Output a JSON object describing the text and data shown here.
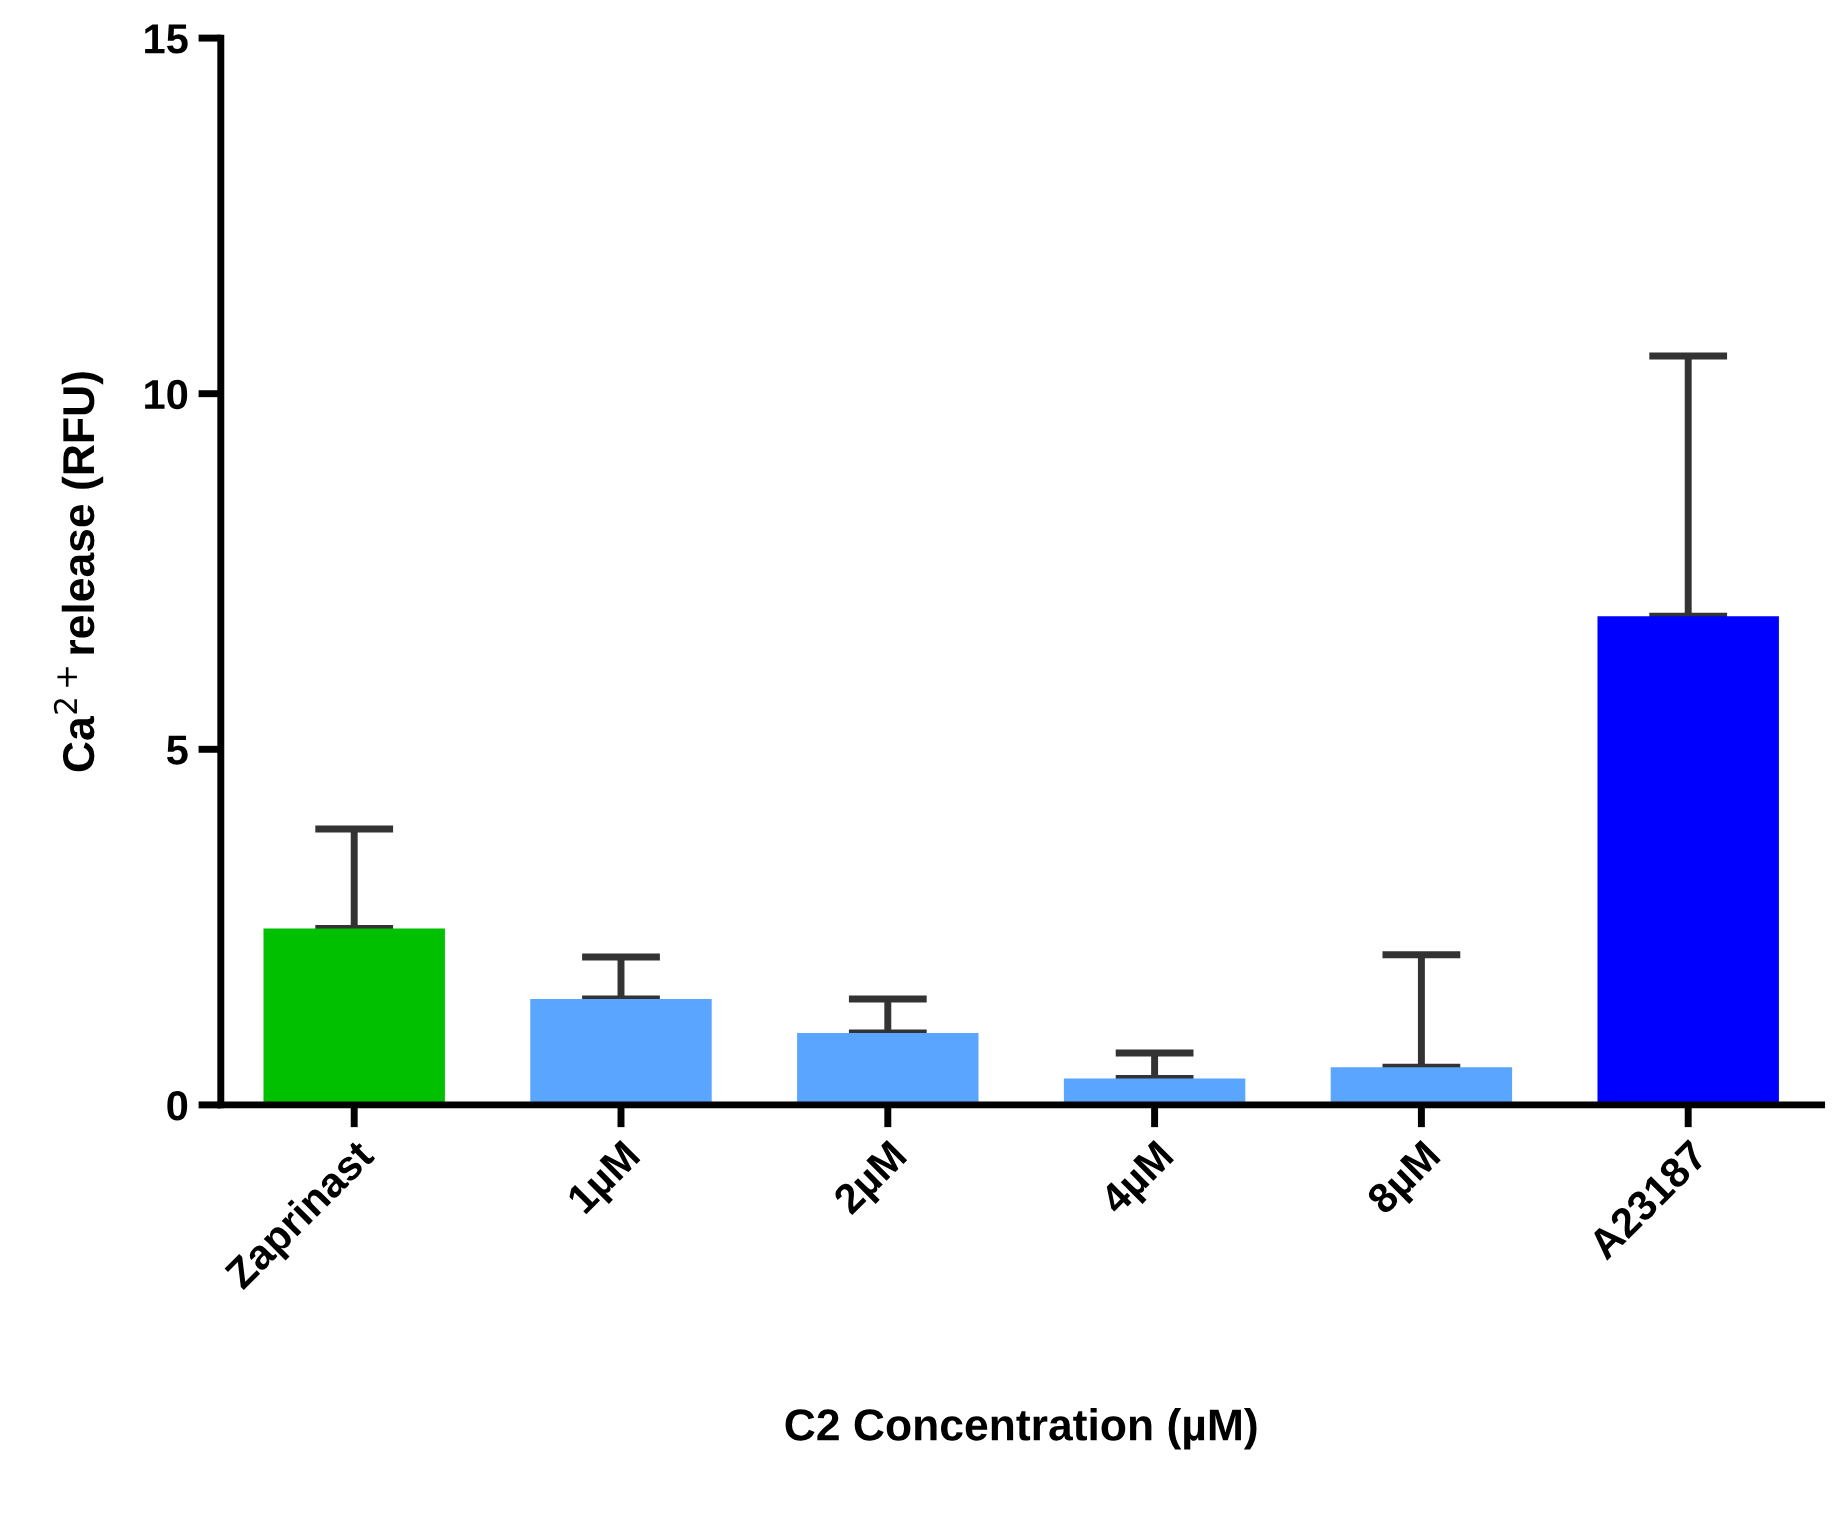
{
  "chart_data": {
    "type": "bar",
    "categories": [
      "Zaprinast",
      "1µM",
      "2µM",
      "4µM",
      "8µM",
      "A23187"
    ],
    "values": [
      2.48,
      1.49,
      1.01,
      0.37,
      0.53,
      6.87
    ],
    "colors": [
      "#00c000",
      "#59a5ff",
      "#59a5ff",
      "#59a5ff",
      "#59a5ff",
      "#0000ff"
    ],
    "errors": [
      [
        2.48,
        3.88
      ],
      [
        1.49,
        2.08
      ],
      [
        1.01,
        1.49
      ],
      [
        0.37,
        0.73
      ],
      [
        0.53,
        2.11
      ],
      [
        6.87,
        10.53
      ]
    ],
    "xlabel": "C2 Concentration (µM)",
    "ylabel": "Ca$^{2+}$release (RFU)",
    "ylim": [
      0,
      15
    ],
    "yticks": [
      0,
      5,
      10,
      15
    ],
    "grid": false,
    "legend": false
  }
}
